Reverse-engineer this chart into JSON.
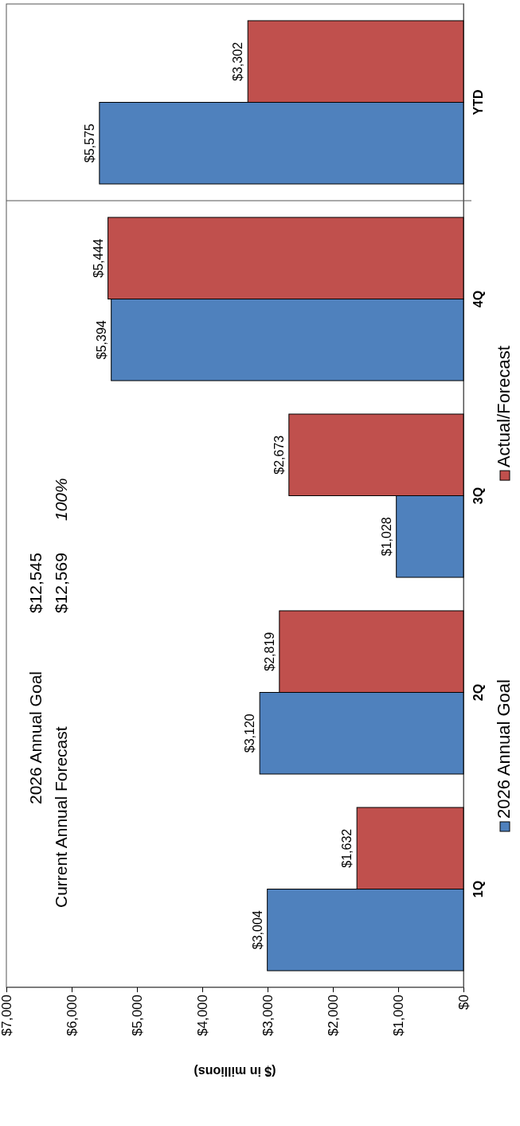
{
  "chart_data": {
    "type": "bar",
    "orientation": "horizontal",
    "xlabel": "($ in millions)",
    "categories": [
      "YTD",
      "4Q",
      "3Q",
      "2Q",
      "1Q"
    ],
    "series": [
      {
        "name": "2026 Annual Goal",
        "color": "#4f81bd",
        "values": [
          5575,
          5394,
          1028,
          3120,
          3004
        ],
        "value_labels": [
          "$5,575",
          "$5,394",
          "$1,028",
          "$3,120",
          "$3,004"
        ]
      },
      {
        "name": "Actual/Forecast",
        "color": "#c0504d",
        "values": [
          3302,
          5444,
          2673,
          2819,
          1632
        ],
        "value_labels": [
          "$3,302",
          "$5,444",
          "$2,673",
          "$2,819",
          "$1,632"
        ]
      }
    ],
    "xlim": [
      7000,
      0
    ],
    "xticks": [
      {
        "value": 7000,
        "label": "$7,000"
      },
      {
        "value": 6000,
        "label": "$6,000"
      },
      {
        "value": 5000,
        "label": "$5,000"
      },
      {
        "value": 4000,
        "label": "$4,000"
      },
      {
        "value": 3000,
        "label": "$3,000"
      },
      {
        "value": 2000,
        "label": "$2,000"
      },
      {
        "value": 1000,
        "label": "$1,000"
      },
      {
        "value": 0,
        "label": "$0"
      }
    ],
    "annotations": [
      "2026 Annual Goal",
      "$12,545",
      "Current Annual Forecast",
      "$12,569",
      "100%"
    ],
    "legend": "right"
  }
}
